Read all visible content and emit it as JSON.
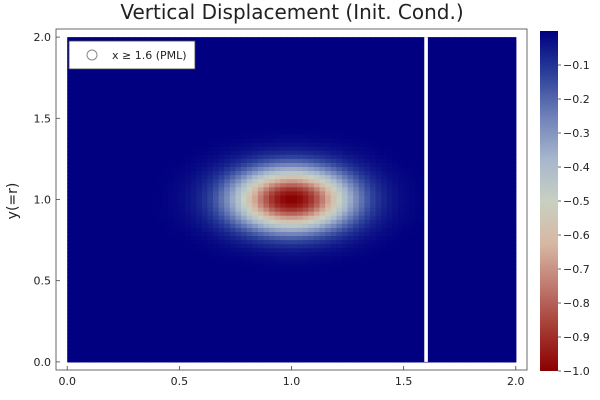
{
  "chart_data": {
    "type": "heatmap",
    "title": "Vertical Displacement (Init. Cond.)",
    "xlabel": "",
    "ylabel": "y(=r)",
    "xlim": [
      -0.05,
      2.05
    ],
    "ylim": [
      -0.05,
      2.05
    ],
    "x_ticks": [
      "0.0",
      "0.5",
      "1.0",
      "1.5",
      "2.0"
    ],
    "x_tick_values": [
      0.0,
      0.5,
      1.0,
      1.5,
      2.0
    ],
    "y_ticks": [
      "0.0",
      "0.5",
      "1.0",
      "1.5",
      "2.0"
    ],
    "y_tick_values": [
      0.0,
      0.5,
      1.0,
      1.5,
      2.0
    ],
    "field": {
      "function": "gaussian",
      "center": [
        1.0,
        1.0
      ],
      "amplitude": -1.0,
      "sigma_x": 0.18,
      "sigma_y": 0.13,
      "domain_x": [
        0.0,
        2.0
      ],
      "domain_y": [
        0.0,
        2.0
      ]
    },
    "pml_boundary_x": 1.6,
    "legend": {
      "placement": "top-left",
      "entries": [
        {
          "label": "x ≥ 1.6 (PML)",
          "marker": "open-circle"
        }
      ]
    },
    "colorbar": {
      "min": -1.0,
      "max": 0.0,
      "ticks": [
        "−0.1",
        "−0.2",
        "−0.3",
        "−0.4",
        "−0.5",
        "−0.6",
        "−0.7",
        "−0.8",
        "−0.9",
        "−1.0"
      ],
      "tick_values": [
        -0.1,
        -0.2,
        -0.3,
        -0.4,
        -0.5,
        -0.6,
        -0.7,
        -0.8,
        -0.9,
        -1.0
      ],
      "colormap": [
        "#000080",
        "#2b3f99",
        "#6e80b8",
        "#a6b6cc",
        "#c8d0c2",
        "#d7b8a4",
        "#c07a6f",
        "#a53a33",
        "#8b0000"
      ]
    },
    "grid": false
  }
}
